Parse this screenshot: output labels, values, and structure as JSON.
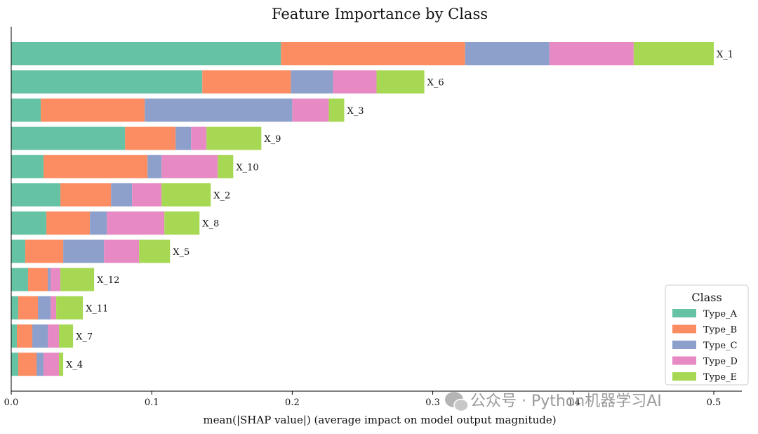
{
  "chart_data": {
    "type": "bar",
    "orientation": "horizontal",
    "stacked": true,
    "title": "Feature Importance by Class",
    "xlabel": "mean(|SHAP value|) (average impact on model output magnitude)",
    "ylabel": "",
    "xlim": [
      0,
      0.5
    ],
    "xticks": [
      "0.0",
      "0.1",
      "0.2",
      "0.3",
      "0.4",
      "0.5"
    ],
    "grid": false,
    "legend": {
      "title": "Class",
      "placement": "bottom-right"
    },
    "categories": [
      "X_1",
      "X_6",
      "X_3",
      "X_9",
      "X_10",
      "X_2",
      "X_8",
      "X_5",
      "X_12",
      "X_11",
      "X_7",
      "X_4"
    ],
    "series": [
      {
        "name": "Type_A",
        "color": "#66c2a5",
        "values": [
          0.192,
          0.136,
          0.021,
          0.081,
          0.023,
          0.035,
          0.025,
          0.01,
          0.012,
          0.005,
          0.004,
          0.005
        ]
      },
      {
        "name": "Type_B",
        "color": "#fc8d62",
        "values": [
          0.131,
          0.063,
          0.074,
          0.036,
          0.074,
          0.036,
          0.031,
          0.027,
          0.014,
          0.014,
          0.011,
          0.013
        ]
      },
      {
        "name": "Type_C",
        "color": "#8da0cb",
        "values": [
          0.06,
          0.03,
          0.105,
          0.011,
          0.01,
          0.015,
          0.012,
          0.029,
          0.002,
          0.009,
          0.011,
          0.005
        ]
      },
      {
        "name": "Type_D",
        "color": "#e78ac3",
        "values": [
          0.06,
          0.031,
          0.026,
          0.011,
          0.04,
          0.021,
          0.041,
          0.025,
          0.007,
          0.004,
          0.008,
          0.011
        ]
      },
      {
        "name": "Type_E",
        "color": "#a6d854",
        "values": [
          0.057,
          0.034,
          0.011,
          0.039,
          0.011,
          0.035,
          0.025,
          0.022,
          0.024,
          0.019,
          0.01,
          0.003
        ]
      }
    ]
  },
  "watermark": {
    "text": "公众号 · Python机器学习AI"
  }
}
